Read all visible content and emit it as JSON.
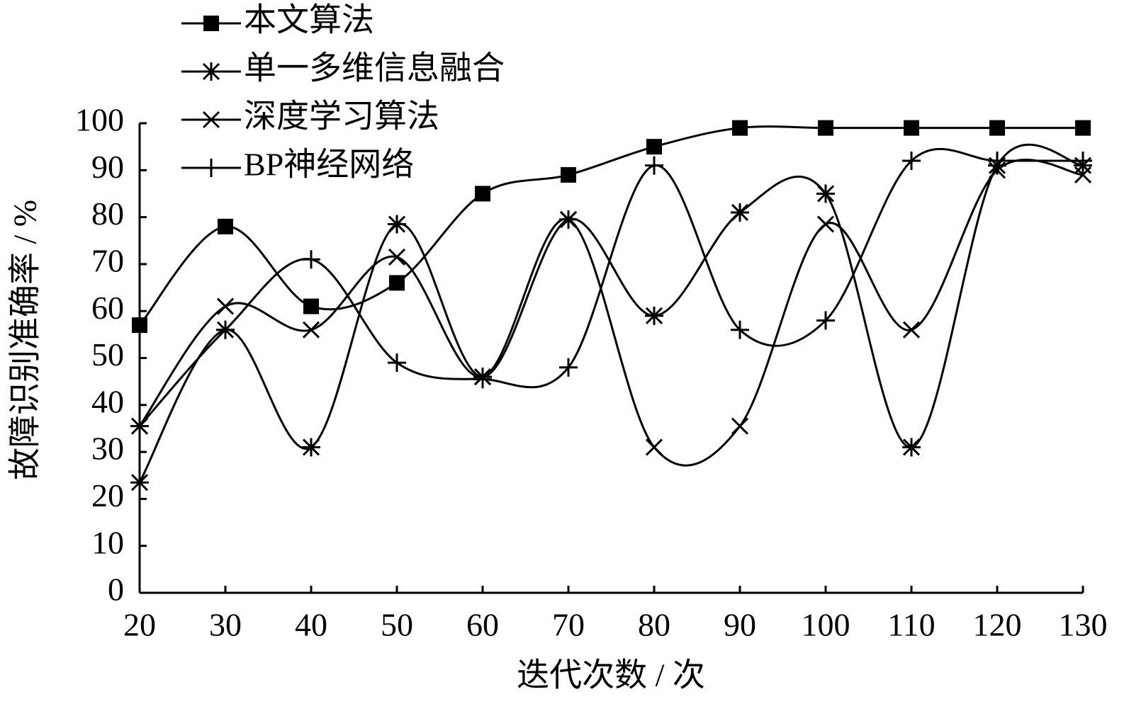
{
  "chart_data": {
    "type": "line",
    "x_label": "迭代次数 / 次",
    "y_label": "故障识别准确率 / %",
    "x": [
      20,
      30,
      40,
      50,
      60,
      70,
      80,
      90,
      100,
      110,
      120,
      130
    ],
    "xlim": [
      20,
      130
    ],
    "xticks": [
      20,
      30,
      40,
      50,
      60,
      70,
      80,
      90,
      100,
      110,
      120,
      130
    ],
    "ylim": [
      0,
      100
    ],
    "yticks": [
      0,
      10,
      20,
      30,
      40,
      50,
      60,
      70,
      80,
      90,
      100
    ],
    "grid": false,
    "smooth": true,
    "legend": "upper left",
    "series": [
      {
        "name": "本文算法",
        "color": "#000000",
        "marker": "square",
        "values": [
          57,
          78,
          61,
          66,
          85,
          89,
          95,
          99,
          99,
          99,
          99,
          99
        ]
      },
      {
        "name": "单一多维信息融合",
        "color": "#000000",
        "marker": "asterisk",
        "values": [
          23.5,
          56,
          31,
          78.5,
          46,
          79.5,
          59,
          81,
          85,
          31,
          91,
          91
        ]
      },
      {
        "name": "深度学习算法",
        "color": "#000000",
        "marker": "cross",
        "values": [
          35.5,
          61,
          56,
          71.5,
          46,
          79.5,
          31,
          35.5,
          78.5,
          56,
          90,
          89
        ]
      },
      {
        "name": "BP神经网络",
        "color": "#000000",
        "marker": "plus",
        "values": [
          35.5,
          56,
          71,
          49,
          45.5,
          48,
          91,
          56,
          58,
          92,
          92,
          92
        ]
      }
    ]
  }
}
